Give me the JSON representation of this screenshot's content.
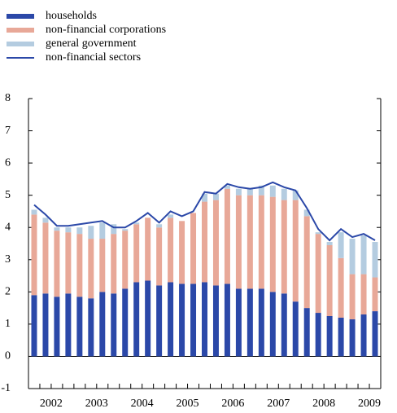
{
  "chart_data": {
    "type": "stacked_bar_line",
    "categories": [
      null,
      "2002",
      null,
      null,
      null,
      "2003",
      null,
      null,
      null,
      "2004",
      null,
      null,
      null,
      "2005",
      null,
      null,
      null,
      "2006",
      null,
      null,
      null,
      "2007",
      null,
      null,
      null,
      "2008",
      null,
      null,
      null,
      "2009",
      null
    ],
    "series": [
      {
        "name": "households",
        "color": "#2b48a8",
        "kind": "bar",
        "values": [
          1.9,
          1.95,
          1.85,
          1.95,
          1.85,
          1.8,
          2.0,
          1.95,
          2.1,
          2.3,
          2.35,
          2.2,
          2.3,
          2.25,
          2.25,
          2.3,
          2.2,
          2.25,
          2.1,
          2.1,
          2.1,
          2.0,
          1.95,
          1.7,
          1.5,
          1.35,
          1.25,
          1.2,
          1.15,
          1.3,
          1.4
        ]
      },
      {
        "name": "non-financial corporations",
        "color": "#e8a898",
        "kind": "bar",
        "values": [
          2.5,
          2.2,
          2.05,
          1.9,
          1.95,
          1.85,
          1.65,
          1.85,
          1.8,
          1.8,
          1.95,
          1.8,
          2.0,
          1.95,
          2.2,
          2.5,
          2.65,
          2.95,
          2.9,
          2.9,
          2.9,
          2.95,
          2.9,
          3.15,
          2.85,
          2.45,
          2.2,
          1.85,
          1.4,
          1.25,
          1.05
        ]
      },
      {
        "name": "general government",
        "color": "#b4cce0",
        "kind": "bar",
        "values": [
          0.15,
          0.15,
          0.1,
          0.15,
          0.2,
          0.4,
          0.5,
          0.3,
          0.05,
          0.05,
          0,
          0.1,
          0.1,
          0,
          0,
          0.25,
          0.2,
          0.1,
          0.2,
          0.2,
          0.3,
          0.35,
          0.35,
          0.3,
          0.2,
          0.05,
          0.1,
          0.8,
          1.1,
          1.2,
          1.1
        ]
      },
      {
        "name": "non-financial sectors",
        "color": "#2b48a8",
        "kind": "line",
        "values": [
          4.7,
          4.4,
          4.05,
          4.05,
          4.1,
          4.15,
          4.2,
          4.0,
          4.0,
          4.2,
          4.45,
          4.15,
          4.5,
          4.35,
          4.5,
          5.1,
          5.05,
          5.35,
          5.25,
          5.2,
          5.25,
          5.4,
          5.25,
          5.15,
          4.6,
          3.95,
          3.6,
          3.95,
          3.7,
          3.8,
          3.6
        ]
      }
    ],
    "ylim": [
      -1,
      8
    ],
    "yticks": [
      -1,
      0,
      1,
      2,
      3,
      4,
      5,
      6,
      7,
      8
    ],
    "grid": false
  }
}
